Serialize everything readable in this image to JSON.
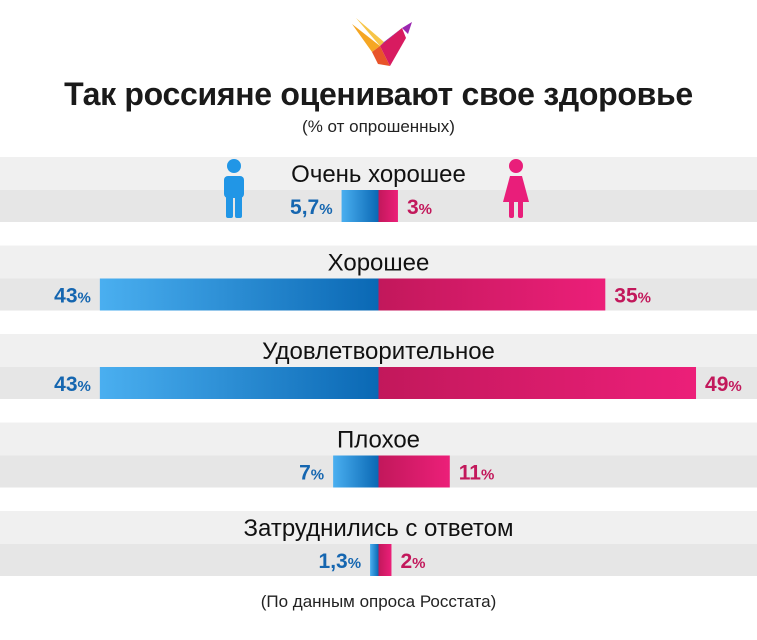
{
  "header": {
    "title": "Так россияне оценивают свое здоровье",
    "subtitle": "(% от опрошенных)",
    "logo_icon": "swallow-bird-logo-icon"
  },
  "footer": {
    "source": "(По данным опроса Росстата)"
  },
  "colors": {
    "male_light": "#4aaff0",
    "male_dark": "#0a68b4",
    "female_dark": "#c2185b",
    "female_light": "#ec1f79",
    "male_text": "#1566b0",
    "female_text": "#c2185b",
    "band": "#f0f0f0",
    "band_dark": "#e6e6e6"
  },
  "legend": {
    "male_icon": "man-icon",
    "female_icon": "woman-icon"
  },
  "chart_data": {
    "type": "bar",
    "orientation": "horizontal-diverging",
    "title": "Так россияне оценивают свое здоровье",
    "subtitle": "(% от опрошенных)",
    "categories": [
      "Очень хорошее",
      "Хорошее",
      "Удовлетворительное",
      "Плохое",
      "Затруднились с ответом"
    ],
    "series": [
      {
        "name": "Мужчины",
        "side": "left",
        "values": [
          5.7,
          43,
          43,
          7,
          1.3
        ],
        "labels": [
          "5,7",
          "43",
          "43",
          "7",
          "1,3"
        ]
      },
      {
        "name": "Женщины",
        "side": "right",
        "values": [
          3,
          35,
          49,
          11,
          2
        ],
        "labels": [
          "3",
          "35",
          "49",
          "11",
          "2"
        ]
      }
    ],
    "unit": "%",
    "xlim": [
      0,
      50
    ],
    "grid": false,
    "legend_position": "top"
  }
}
